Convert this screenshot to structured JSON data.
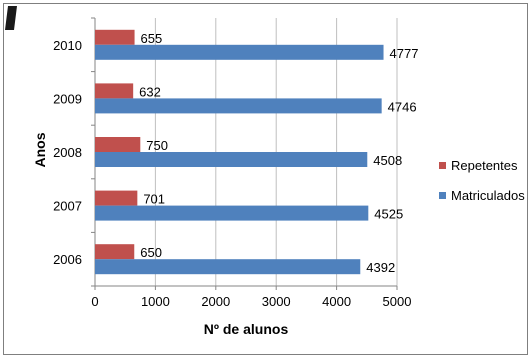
{
  "chart_data": {
    "type": "bar",
    "orientation": "horizontal",
    "categories": [
      "2006",
      "2007",
      "2008",
      "2009",
      "2010"
    ],
    "series": [
      {
        "name": "Repetentes",
        "values": [
          650,
          701,
          750,
          632,
          655
        ],
        "color": "#c0504d"
      },
      {
        "name": "Matriculados",
        "values": [
          4392,
          4525,
          4508,
          4746,
          4777
        ],
        "color": "#4f81bd"
      }
    ],
    "xlabel": "Nº de alunos",
    "ylabel": "Anos",
    "xlim": [
      0,
      5000
    ],
    "xticks": [
      "0",
      "1000",
      "2000",
      "3000",
      "4000",
      "5000"
    ],
    "grid": true,
    "legend_position": "right",
    "data_labels": true
  },
  "colors": {
    "grid": "#bfbfbf",
    "axis": "#868686",
    "frame": "#7f7f7f",
    "corner_mark": "#1a1a1a"
  }
}
